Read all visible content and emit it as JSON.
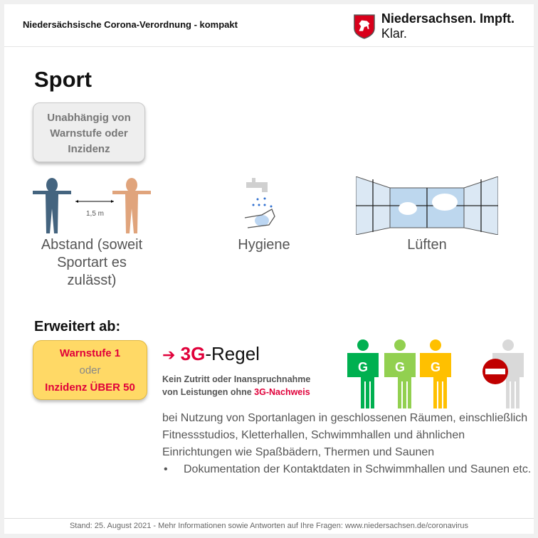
{
  "header": {
    "title": "Niedersächsische Corona-Verordnung - kompakt",
    "brand_bold": "Niedersachsen. Impft.",
    "brand_light": " Klar.",
    "logo": "niedersachsen-horse-crest"
  },
  "page_title": "Sport",
  "independent_box": "Unabhängig von Warnstufe oder Inzidenz",
  "icons": {
    "distance_label": "1,5 m",
    "abstand": "Abstand (soweit Sportart es zulässt)",
    "hygiene": "Hygiene",
    "lueften": "Lüften"
  },
  "extended": {
    "heading": "Erweitert ab:",
    "box_line1": "Warnstufe 1",
    "box_line2": "oder",
    "box_line3": "Inzidenz ÜBER 50"
  },
  "rule": {
    "arrow": "➔",
    "prefix": "3G",
    "suffix": "-Regel",
    "line1": "Kein Zutritt oder Inanspruchnahme",
    "line2": "von Leistungen ohne ",
    "line2_red": "3G-Nachweis",
    "figure_letter": "G",
    "figure_colors": [
      "#00b050",
      "#92d050",
      "#ffc000",
      "#d9d9d9"
    ]
  },
  "body_text": "bei Nutzung von Sportanlagen in geschlossenen Räumen, einschließlich Fitnessstudios, Kletterhallen, Schwimmhallen und ähnlichen Einrichtungen wie Spaßbädern, Thermen und Saunen",
  "bullets": [
    "Dokumentation der Kontaktdaten in Schwimmhallen und Saunen etc."
  ],
  "footer": "Stand: 25. August 2021 - Mehr Informationen sowie Antworten auf Ihre Fragen: www.niedersachsen.de/coronavirus"
}
